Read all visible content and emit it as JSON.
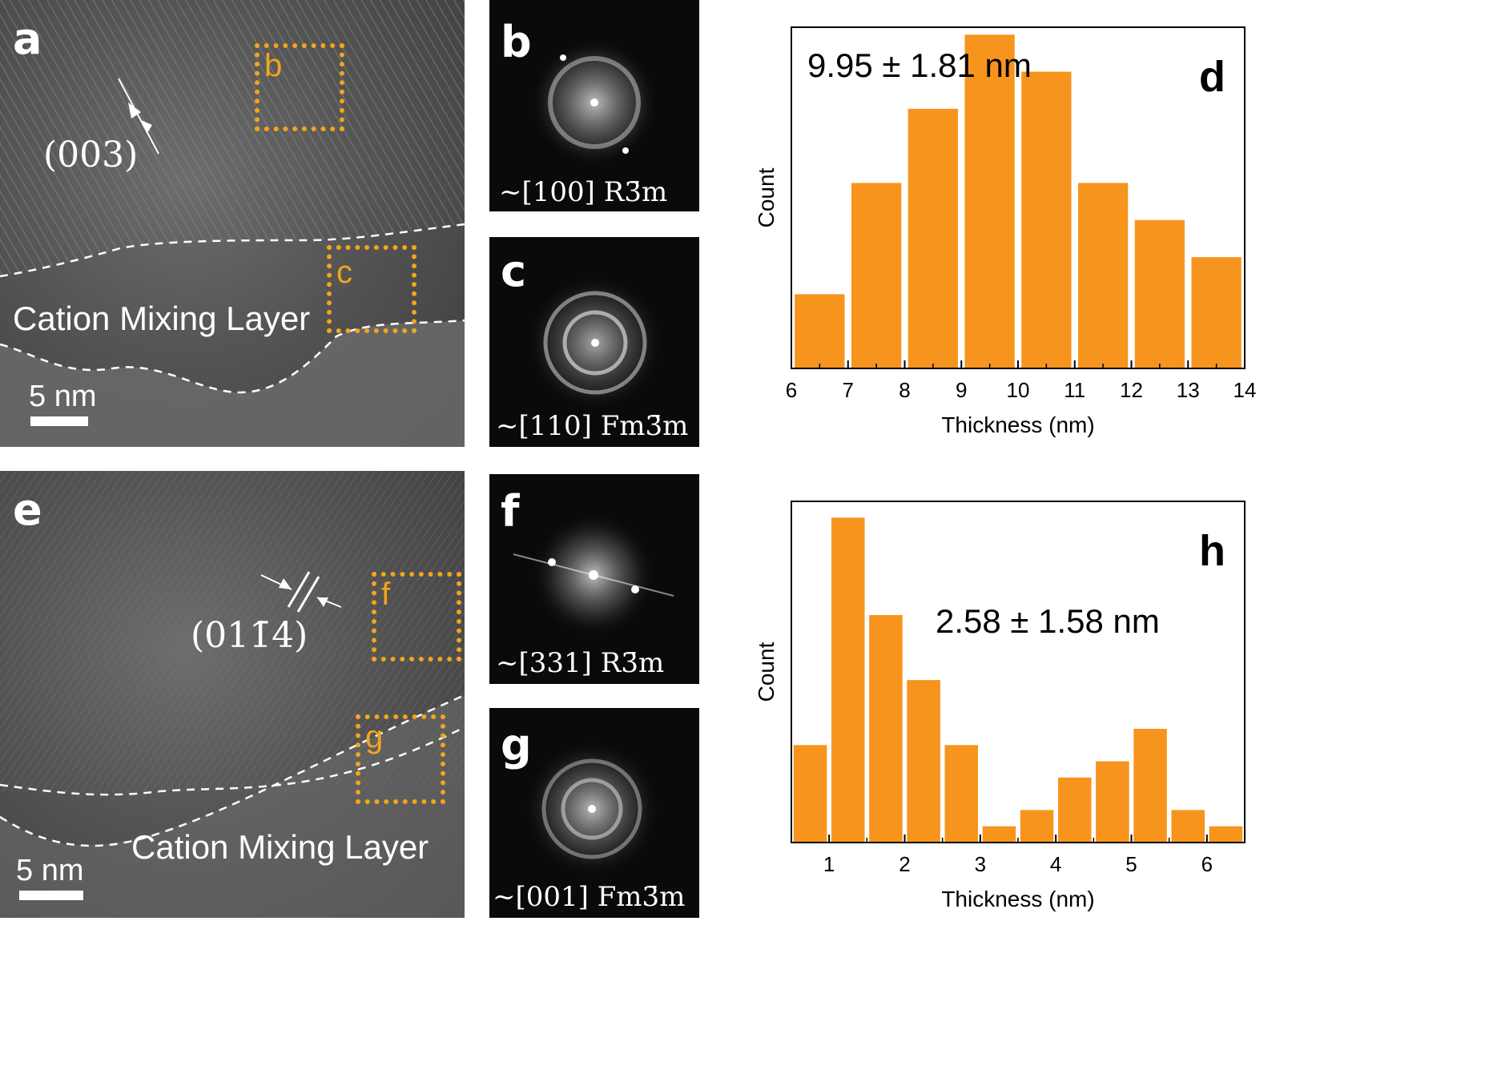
{
  "panels": {
    "a": {
      "label": "a",
      "miller": "(003)",
      "layer_label": "Cation Mixing Layer",
      "scale_label": "5 nm",
      "roi_labels": [
        "b",
        "c"
      ]
    },
    "b": {
      "label": "b",
      "zone": "~[100] R3̄m"
    },
    "c": {
      "label": "c",
      "zone": "~[110] Fm3̄m"
    },
    "e": {
      "label": "e",
      "miller": "(011̄4)",
      "layer_label": "Cation Mixing Layer",
      "scale_label": "5 nm",
      "roi_labels": [
        "f",
        "g"
      ]
    },
    "f": {
      "label": "f",
      "zone": "~[331] R3̄m"
    },
    "g": {
      "label": "g",
      "zone": "~[001] Fm3̄m"
    }
  },
  "colors": {
    "bar": "#f7941d",
    "roi": "#f2a51c"
  },
  "chart_data": [
    {
      "type": "bar",
      "panel_label": "d",
      "annotation": "9.95 ± 1.81 nm",
      "xlabel": "Thickness (nm)",
      "ylabel": "Count",
      "xlim": [
        6,
        14
      ],
      "xticks": [
        6,
        7,
        8,
        9,
        10,
        11,
        12,
        13,
        14
      ],
      "bin_width": 1,
      "bins": [
        6.5,
        7.5,
        8.5,
        9.5,
        10.5,
        11.5,
        12.5,
        13.5
      ],
      "values": [
        2,
        5,
        7,
        9,
        8,
        5,
        4,
        3
      ],
      "ylim": [
        0,
        9.2
      ]
    },
    {
      "type": "bar",
      "panel_label": "h",
      "annotation": "2.58 ± 1.58 nm",
      "xlabel": "Thickness (nm)",
      "ylabel": "Count",
      "xlim": [
        0.5,
        6.5
      ],
      "xticks": [
        1,
        2,
        3,
        4,
        5,
        6
      ],
      "bin_width": 0.5,
      "bins": [
        0.75,
        1.25,
        1.75,
        2.25,
        2.75,
        3.25,
        3.75,
        4.25,
        4.75,
        5.25,
        5.75,
        6.25
      ],
      "values": [
        3,
        10,
        7,
        5,
        3,
        0.5,
        1,
        2,
        2.5,
        3.5,
        1,
        0.5
      ],
      "ylim": [
        0,
        10.5
      ]
    }
  ]
}
